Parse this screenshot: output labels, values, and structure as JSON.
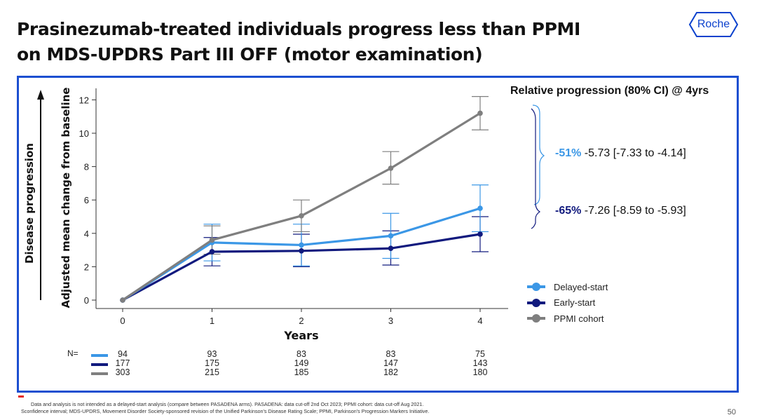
{
  "title": {
    "line1": "Prasinezumab-treated individuals progress less than PPMI",
    "line2": "on MDS-UPDRS Part III OFF (motor examination)"
  },
  "logo": {
    "text": "Roche",
    "color": "#0b41cd"
  },
  "colors": {
    "delayed": "#3b97e6",
    "early": "#111a7e",
    "ppmi": "#7f7f7f",
    "frame": "#1c4fd0"
  },
  "relative": {
    "title": "Relative progression (80% CI) @ 4yrs",
    "delayed": {
      "pct": "-51%",
      "rest": " -5.73 [-7.33 to -4.14]"
    },
    "early": {
      "pct": "-65%",
      "rest": " -7.26 [-8.59 to -5.93]"
    }
  },
  "n_counts": {
    "label": "N=",
    "rows": [
      {
        "series": "Delayed-start",
        "values": [
          "94",
          "93",
          "83",
          "83",
          "75"
        ]
      },
      {
        "series": "Early-start",
        "values": [
          "177",
          "175",
          "149",
          "147",
          "143"
        ]
      },
      {
        "series": "PPMI cohort",
        "values": [
          "303",
          "215",
          "185",
          "182",
          "180"
        ]
      }
    ]
  },
  "chart_data": {
    "type": "line",
    "title": "",
    "xlabel": "Years",
    "ylabel": "Adjusted mean change from baseline",
    "outer_ylabel": "Disease progression",
    "x": [
      0,
      1,
      2,
      3,
      4
    ],
    "xticks": [
      "0",
      "1",
      "2",
      "3",
      "4"
    ],
    "yticks": [
      "0",
      "2",
      "4",
      "6",
      "8",
      "10",
      "12"
    ],
    "ylim": [
      -0.5,
      13
    ],
    "xlim": [
      -0.3,
      4.3
    ],
    "legend_position": "right",
    "series": [
      {
        "name": "Delayed-start",
        "color": "#3b97e6",
        "values": [
          0,
          3.45,
          3.3,
          3.85,
          5.5
        ],
        "ci_low": [
          0,
          2.35,
          2.05,
          2.5,
          4.1
        ],
        "ci_high": [
          0,
          4.55,
          4.55,
          5.2,
          6.9
        ]
      },
      {
        "name": "Early-start",
        "color": "#111a7e",
        "values": [
          0,
          2.9,
          2.95,
          3.1,
          3.95
        ],
        "ci_low": [
          0,
          2.05,
          2.0,
          2.1,
          2.9
        ],
        "ci_high": [
          0,
          3.75,
          3.95,
          4.15,
          5.0
        ]
      },
      {
        "name": "PPMI cohort",
        "color": "#7f7f7f",
        "values": [
          0,
          3.6,
          5.05,
          7.9,
          11.2
        ],
        "ci_low": [
          0,
          2.75,
          4.1,
          6.95,
          10.2
        ],
        "ci_high": [
          0,
          4.45,
          6.0,
          8.9,
          12.2
        ]
      }
    ]
  },
  "footnotes": {
    "line1": "Data and analysis is not intended as a delayed-start analysis (compare between PASADENA arms). PASADENA: data cut-off 2nd Oct 2023; PPMI cohort: data cut-off Aug 2021.",
    "line2": "Sconfidence interval; MDS-UPDRS, Movement Disorder Society-sponsored revision of the Unified Parkinson's Disease Rating Scale; PPMI, Parkinson's Progression Markers Initiative."
  },
  "page_number": "50"
}
